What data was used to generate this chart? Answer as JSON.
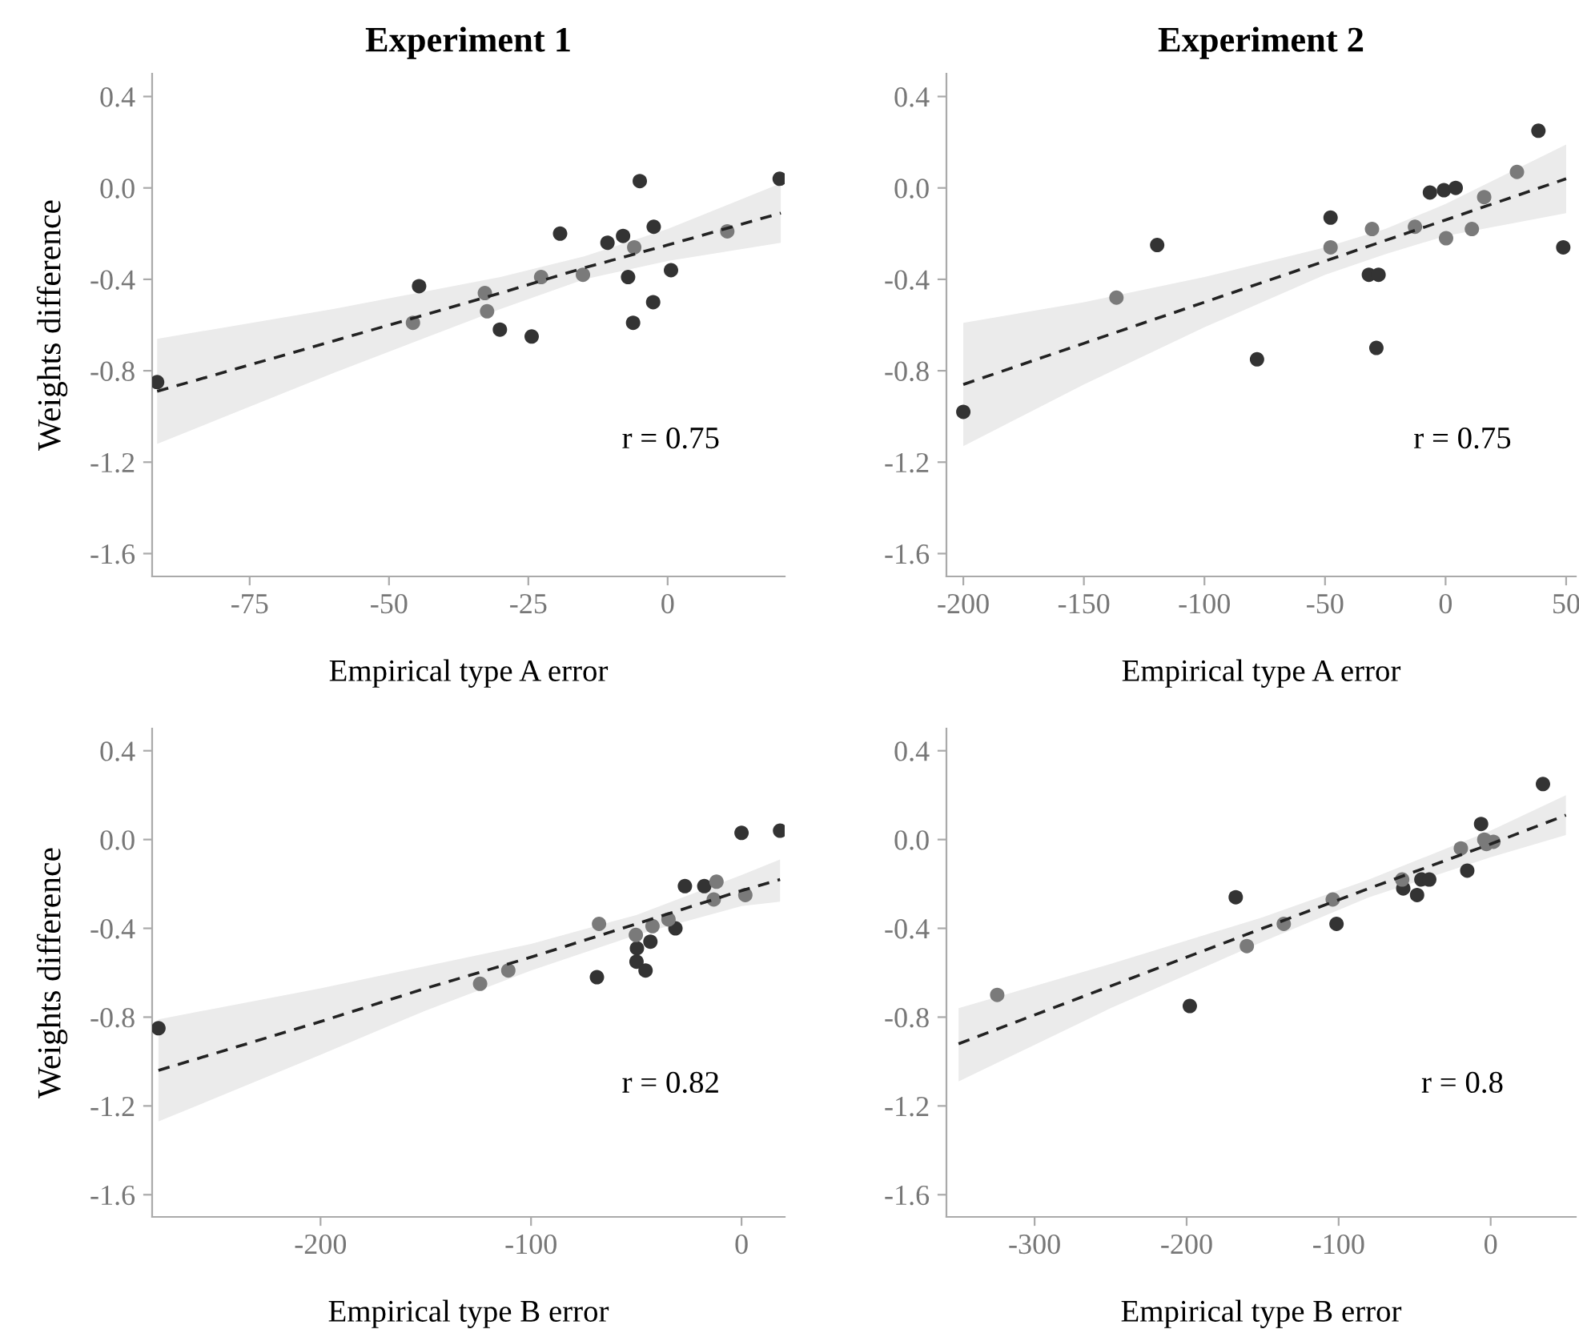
{
  "chart_data": [
    {
      "type": "scatter",
      "title": "Experiment 1",
      "xlabel": "Empirical type A error",
      "ylabel": "Weights difference",
      "xlim": [
        -92.5,
        21
      ],
      "ylim": [
        -1.7,
        0.5
      ],
      "xticks": [
        -75,
        -50,
        -25,
        0
      ],
      "yticks": [
        {
          "value": 0.4,
          "label": "0.4"
        },
        {
          "value": 0.0,
          "label": "0.0"
        },
        {
          "value": -0.4,
          "label": "-0.4"
        },
        {
          "value": -0.8,
          "label": "-0.8"
        },
        {
          "value": -1.2,
          "label": "-1.2"
        },
        {
          "value": -1.6,
          "label": "-1.6"
        }
      ],
      "grid": false,
      "marker": "circle",
      "annotations": [
        "r = 0.75"
      ],
      "series": [
        {
          "color": "#333333",
          "x": [
            -91.6,
            -44.6,
            -30.1,
            -24.4,
            -19.3,
            -10.8,
            -8.0,
            -7.1,
            -6.2,
            -5.0,
            -2.5,
            -2.6,
            0.6,
            20.1
          ],
          "values": [
            -0.85,
            -0.43,
            -0.62,
            -0.65,
            -0.2,
            -0.24,
            -0.21,
            -0.39,
            -0.59,
            0.03,
            -0.17,
            -0.5,
            -0.36,
            0.04
          ]
        },
        {
          "color": "#7a7a7a",
          "x": [
            -45.7,
            -32.8,
            -32.4,
            -22.7,
            -15.2,
            -6.0,
            10.7
          ],
          "values": [
            -0.59,
            -0.46,
            -0.54,
            -0.39,
            -0.38,
            -0.26,
            -0.19
          ]
        },
        {
          "type": "line",
          "color": "#222222",
          "line_style": "dashed",
          "marker": "none",
          "x": [
            -91.6,
            -60,
            -30,
            -15,
            0,
            20.3
          ],
          "values": [
            -0.89,
            -0.67,
            -0.46,
            -0.35,
            -0.25,
            -0.11
          ],
          "lower": [
            -1.12,
            -0.81,
            -0.53,
            -0.4,
            -0.32,
            -0.24
          ],
          "upper": [
            -0.66,
            -0.53,
            -0.39,
            -0.3,
            -0.18,
            0.02
          ]
        }
      ]
    },
    {
      "type": "scatter",
      "title": "Experiment 2",
      "xlabel": "Empirical type A error",
      "xlim": [
        -207,
        54
      ],
      "ylim": [
        -1.7,
        0.5
      ],
      "xticks": [
        -200,
        -150,
        -100,
        -50,
        0,
        50
      ],
      "yticks": [
        {
          "value": 0.4,
          "label": "0.4"
        },
        {
          "value": 0.0,
          "label": "0.0"
        },
        {
          "value": -0.4,
          "label": "-0.4"
        },
        {
          "value": -0.8,
          "label": "-0.8"
        },
        {
          "value": -1.2,
          "label": "-1.2"
        },
        {
          "value": -1.6,
          "label": "-1.6"
        }
      ],
      "grid": false,
      "marker": "circle",
      "annotations": [
        "r = 0.75"
      ],
      "series": [
        {
          "color": "#333333",
          "x": [
            -200,
            -119.6,
            -78.2,
            -47.7,
            -31.8,
            -27.8,
            -28.7,
            -6.5,
            -0.7,
            4.2,
            38.5,
            48.8
          ],
          "values": [
            -0.98,
            -0.25,
            -0.75,
            -0.13,
            -0.38,
            -0.38,
            -0.7,
            -0.02,
            -0.01,
            0.0,
            0.25,
            -0.26
          ]
        },
        {
          "color": "#7a7a7a",
          "x": [
            -136.5,
            -47.7,
            -30.5,
            -12.7,
            0.2,
            16.0,
            10.9,
            29.6
          ],
          "values": [
            -0.48,
            -0.26,
            -0.18,
            -0.17,
            -0.22,
            -0.04,
            -0.18,
            0.07
          ]
        },
        {
          "type": "line",
          "color": "#222222",
          "line_style": "dashed",
          "marker": "none",
          "x": [
            -200,
            -150,
            -100,
            -50,
            -25,
            0,
            50
          ],
          "values": [
            -0.86,
            -0.68,
            -0.5,
            -0.32,
            -0.23,
            -0.14,
            0.04
          ],
          "lower": [
            -1.13,
            -0.86,
            -0.61,
            -0.38,
            -0.29,
            -0.21,
            -0.11
          ],
          "upper": [
            -0.59,
            -0.5,
            -0.39,
            -0.26,
            -0.18,
            -0.07,
            0.19
          ]
        }
      ]
    },
    {
      "type": "scatter",
      "xlabel": "Empirical type B error",
      "ylabel": "Weights difference",
      "xlim": [
        -280,
        20.5
      ],
      "ylim": [
        -1.7,
        0.5
      ],
      "xticks": [
        -200,
        -100,
        0
      ],
      "yticks": [
        {
          "value": 0.4,
          "label": "0.4"
        },
        {
          "value": 0.0,
          "label": "0.0"
        },
        {
          "value": -0.4,
          "label": "-0.4"
        },
        {
          "value": -0.8,
          "label": "-0.8"
        },
        {
          "value": -1.2,
          "label": "-1.2"
        },
        {
          "value": -1.6,
          "label": "-1.6"
        }
      ],
      "grid": false,
      "marker": "circle",
      "annotations": [
        "r = 0.82"
      ],
      "series": [
        {
          "color": "#333333",
          "x": [
            -277,
            -68.7,
            -49.7,
            -49.9,
            -45.6,
            -43.3,
            -31.4,
            -26.9,
            -17.7,
            0.0,
            18.3
          ],
          "values": [
            -0.85,
            -0.62,
            -0.49,
            -0.55,
            -0.59,
            -0.46,
            -0.4,
            -0.21,
            -0.21,
            0.03,
            0.04
          ]
        },
        {
          "color": "#7a7a7a",
          "x": [
            -124.2,
            -110.8,
            -67.7,
            -50.2,
            -42.3,
            -34.7,
            -13.2,
            -11.9,
            1.8
          ],
          "values": [
            -0.65,
            -0.59,
            -0.38,
            -0.43,
            -0.39,
            -0.36,
            -0.27,
            -0.19,
            -0.25
          ]
        },
        {
          "type": "line",
          "color": "#222222",
          "line_style": "dashed",
          "marker": "none",
          "x": [
            -277,
            -200,
            -150,
            -100,
            -50,
            0,
            18.3
          ],
          "values": [
            -1.04,
            -0.82,
            -0.67,
            -0.53,
            -0.38,
            -0.23,
            -0.18
          ],
          "lower": [
            -1.27,
            -0.97,
            -0.77,
            -0.59,
            -0.43,
            -0.3,
            -0.28
          ],
          "upper": [
            -0.81,
            -0.67,
            -0.57,
            -0.47,
            -0.34,
            -0.16,
            -0.09
          ]
        }
      ]
    },
    {
      "type": "scatter",
      "xlabel": "Empirical type B error",
      "xlim": [
        -358,
        56
      ],
      "ylim": [
        -1.7,
        0.5
      ],
      "xticks": [
        -300,
        -200,
        -100,
        0
      ],
      "yticks": [
        {
          "value": 0.4,
          "label": "0.4"
        },
        {
          "value": 0.0,
          "label": "0.0"
        },
        {
          "value": -0.4,
          "label": "-0.4"
        },
        {
          "value": -0.8,
          "label": "-0.8"
        },
        {
          "value": -1.2,
          "label": "-1.2"
        },
        {
          "value": -1.6,
          "label": "-1.6"
        }
      ],
      "grid": false,
      "marker": "circle",
      "annotations": [
        "r = 0.8"
      ],
      "series": [
        {
          "color": "#333333",
          "x": [
            -197.9,
            -167.7,
            -101.4,
            -57.5,
            -48.4,
            -45.6,
            -40.4,
            -15.4,
            -6.3,
            34.4
          ],
          "values": [
            -0.75,
            -0.26,
            -0.38,
            -0.22,
            -0.25,
            -0.18,
            -0.18,
            -0.14,
            0.07,
            0.25
          ]
        },
        {
          "color": "#7a7a7a",
          "x": [
            -324.6,
            -160.4,
            -136.1,
            -103.9,
            -58.2,
            -19.6,
            -4.2,
            -2.8,
            1.8
          ],
          "values": [
            -0.7,
            -0.48,
            -0.38,
            -0.27,
            -0.18,
            -0.04,
            0.0,
            -0.02,
            -0.01
          ]
        },
        {
          "type": "line",
          "color": "#222222",
          "line_style": "dashed",
          "marker": "none",
          "x": [
            -350,
            -250,
            -150,
            -80,
            0,
            49.5
          ],
          "values": [
            -0.92,
            -0.66,
            -0.4,
            -0.22,
            -0.02,
            0.11
          ],
          "lower": [
            -1.09,
            -0.76,
            -0.46,
            -0.26,
            -0.08,
            0.02
          ],
          "upper": [
            -0.76,
            -0.56,
            -0.35,
            -0.18,
            0.04,
            0.2
          ]
        }
      ]
    }
  ]
}
